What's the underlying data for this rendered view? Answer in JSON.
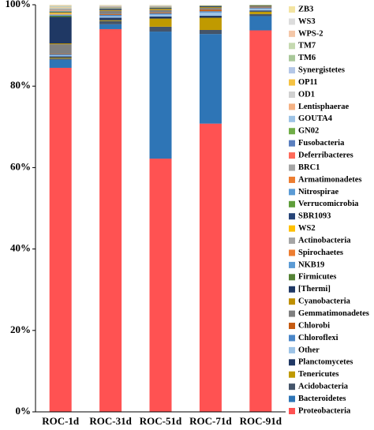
{
  "chart_data": {
    "type": "stacked-bar",
    "categories": [
      "ROC-1d",
      "ROC-31d",
      "ROC-51d",
      "ROC-71d",
      "ROC-91d"
    ],
    "ylim": [
      0,
      100
    ],
    "yticks": [
      {
        "value": 0,
        "label": "0%"
      },
      {
        "value": 20,
        "label": "20%"
      },
      {
        "value": 40,
        "label": "40%"
      },
      {
        "value": 60,
        "label": "60%"
      },
      {
        "value": 80,
        "label": "80%"
      },
      {
        "value": 100,
        "label": "100%"
      }
    ],
    "series": [
      {
        "name": "ZB3",
        "color": "#f3e4a2",
        "values": [
          0.1,
          0.04,
          0.03,
          0.01,
          0
        ]
      },
      {
        "name": "WS3",
        "color": "#dcdcdc",
        "values": [
          0.1,
          0.04,
          0.03,
          0.01,
          0
        ]
      },
      {
        "name": "WPS-2",
        "color": "#f4c7a8",
        "values": [
          0.1,
          0.04,
          0.03,
          0.01,
          0
        ]
      },
      {
        "name": "TM7",
        "color": "#c5d9b0",
        "values": [
          0.1,
          0.04,
          0.03,
          0.01,
          0
        ]
      },
      {
        "name": "TM6",
        "color": "#a9c89a",
        "values": [
          0.1,
          0.04,
          0.03,
          0.01,
          0
        ]
      },
      {
        "name": "Synergistetes",
        "color": "#b4c7e7",
        "values": [
          0.1,
          0.04,
          0.03,
          0.01,
          0
        ]
      },
      {
        "name": "OP11",
        "color": "#f5c242",
        "values": [
          0.1,
          0.04,
          0.03,
          0.01,
          0
        ]
      },
      {
        "name": "OD1",
        "color": "#d0d0d0",
        "values": [
          0.1,
          0.04,
          0.03,
          0.01,
          0
        ]
      },
      {
        "name": "Lentisphaerae",
        "color": "#f4b183",
        "values": [
          0.1,
          0.04,
          0.03,
          0.01,
          0
        ]
      },
      {
        "name": "GOUTA4",
        "color": "#9dc3e6",
        "values": [
          0.1,
          0.04,
          0.03,
          0.01,
          0
        ]
      },
      {
        "name": "GN02",
        "color": "#70ad47",
        "values": [
          0.1,
          0.04,
          0.03,
          0.01,
          0
        ]
      },
      {
        "name": "Fusobacteria",
        "color": "#5b7fbf",
        "values": [
          0.1,
          0.04,
          0.03,
          0.01,
          0
        ]
      },
      {
        "name": "Deferribacteres",
        "color": "#ff6a5a",
        "values": [
          0.1,
          0.04,
          0.03,
          0.01,
          0
        ]
      },
      {
        "name": "BRC1",
        "color": "#a5a5a5",
        "values": [
          0.1,
          0.04,
          0.03,
          0.01,
          0
        ]
      },
      {
        "name": "Armatimonadetes",
        "color": "#ed7d31",
        "values": [
          0.1,
          0.04,
          0.03,
          0.01,
          0
        ]
      },
      {
        "name": "Nitrospirae",
        "color": "#5b9bd5",
        "values": [
          0.1,
          0.04,
          0.03,
          0.01,
          0
        ]
      },
      {
        "name": "Verrucomicrobia",
        "color": "#5e9e3a",
        "values": [
          0.1,
          0.04,
          0.03,
          0.01,
          0
        ]
      },
      {
        "name": "SBR1093",
        "color": "#264478",
        "values": [
          0.2,
          0.04,
          0.03,
          0.01,
          0
        ]
      },
      {
        "name": "WS2",
        "color": "#ffc000",
        "values": [
          0.3,
          0.04,
          0.03,
          0.01,
          0
        ]
      },
      {
        "name": "Actinobacteria",
        "color": "#a5a5a5",
        "values": [
          0.2,
          0.04,
          0.03,
          0.01,
          0
        ]
      },
      {
        "name": "Spirochaetes",
        "color": "#ed7d31",
        "values": [
          0.1,
          0.04,
          0.03,
          0.01,
          0
        ]
      },
      {
        "name": "NKB19",
        "color": "#5b9bd5",
        "values": [
          0.2,
          0.04,
          0.03,
          0.01,
          0
        ]
      },
      {
        "name": "Firmicutes",
        "color": "#548235",
        "values": [
          0.3,
          0.1,
          0.1,
          0.1,
          0.1
        ]
      },
      {
        "name": "[Thermi]",
        "color": "#1f3864",
        "values": [
          6.5,
          0.3,
          0.2,
          0.2,
          0.1
        ]
      },
      {
        "name": "Cyanobacteria",
        "color": "#bf9000",
        "values": [
          0.2,
          0.2,
          0.3,
          0.2,
          0.1
        ]
      },
      {
        "name": "Gemmatimonadetes",
        "color": "#7f7f7f",
        "values": [
          2.4,
          0.8,
          0.6,
          0.4,
          0.3
        ]
      },
      {
        "name": "Chlorobi",
        "color": "#c55a11",
        "values": [
          0.1,
          0.2,
          0.2,
          0.4,
          0.1
        ]
      },
      {
        "name": "Chloroflexi",
        "color": "#4a86c8",
        "values": [
          0.2,
          0.3,
          0.3,
          0.3,
          0.2
        ]
      },
      {
        "name": "Other",
        "color": "#9dc3e6",
        "values": [
          0.3,
          0.4,
          0.5,
          0.8,
          0.4
        ]
      },
      {
        "name": "Planctomycetes",
        "color": "#203864",
        "values": [
          0.3,
          0.6,
          0.5,
          0.5,
          0.3
        ]
      },
      {
        "name": "Tenericutes",
        "color": "#c09a00",
        "values": [
          0.2,
          0.2,
          2.0,
          3.0,
          0.6
        ]
      },
      {
        "name": "Acidobacteria",
        "color": "#44546a",
        "values": [
          0.3,
          0.8,
          1.2,
          1.0,
          0.5
        ]
      },
      {
        "name": "Bacteroidetes",
        "color": "#2e75b6",
        "values": [
          2.0,
          1.2,
          31.2,
          22,
          3.5
        ]
      },
      {
        "name": "Proteobacteria",
        "color": "#ff5252",
        "values": [
          84.5,
          94,
          62.2,
          70.8,
          93.7
        ]
      }
    ]
  }
}
